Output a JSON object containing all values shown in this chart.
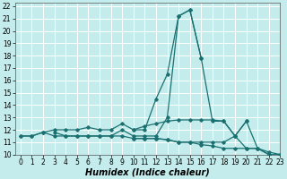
{
  "xlabel": "Humidex (Indice chaleur)",
  "ylabel": "",
  "xlim": [
    -0.5,
    23
  ],
  "ylim": [
    10,
    22.3
  ],
  "bg_color": "#c5ecec",
  "grid_color": "#ffffff",
  "line_color": "#1a7070",
  "lines": [
    {
      "x": [
        0,
        1,
        2,
        3,
        4,
        5,
        6,
        7,
        8,
        9,
        10,
        11,
        12,
        13,
        14,
        15,
        16
      ],
      "y": [
        11.5,
        11.5,
        11.8,
        11.5,
        11.5,
        11.5,
        11.5,
        11.5,
        11.5,
        12.0,
        11.5,
        11.5,
        11.5,
        13.0,
        21.2,
        21.7,
        17.8
      ]
    },
    {
      "x": [
        0,
        1,
        2,
        3,
        4,
        5,
        6,
        7,
        8,
        9,
        10,
        11,
        12,
        13,
        14,
        15,
        16,
        17,
        18,
        19,
        20,
        21,
        22,
        23
      ],
      "y": [
        11.5,
        11.5,
        11.8,
        12.0,
        12.0,
        12.0,
        12.2,
        12.0,
        12.0,
        12.5,
        12.0,
        12.0,
        14.5,
        16.5,
        21.2,
        21.7,
        17.8,
        12.7,
        12.7,
        11.5,
        12.7,
        10.5,
        10.2,
        10.0
      ]
    },
    {
      "x": [
        3,
        4,
        5,
        6,
        7,
        8,
        9,
        10,
        11,
        12,
        13,
        14,
        15,
        16,
        17,
        18,
        19,
        20,
        21,
        22
      ],
      "y": [
        11.8,
        11.5,
        11.5,
        11.5,
        11.5,
        11.5,
        11.5,
        11.3,
        11.3,
        11.3,
        11.2,
        11.0,
        11.0,
        11.0,
        11.0,
        11.0,
        11.5,
        10.5,
        10.5,
        10.0
      ]
    },
    {
      "x": [
        10,
        11,
        12,
        13,
        14,
        15,
        16,
        17,
        18,
        19,
        20
      ],
      "y": [
        12.0,
        12.3,
        12.5,
        12.7,
        12.8,
        12.8,
        12.8,
        12.8,
        12.7,
        11.5,
        12.7
      ]
    },
    {
      "x": [
        10,
        11,
        12,
        13,
        14,
        15,
        16,
        17,
        18,
        19,
        20,
        21,
        22,
        23
      ],
      "y": [
        11.3,
        11.3,
        11.3,
        11.2,
        11.0,
        11.0,
        10.8,
        10.7,
        10.5,
        10.5,
        10.5,
        10.5,
        10.0,
        10.0
      ]
    }
  ],
  "xticks": [
    0,
    1,
    2,
    3,
    4,
    5,
    6,
    7,
    8,
    9,
    10,
    11,
    12,
    13,
    14,
    15,
    16,
    17,
    18,
    19,
    20,
    21,
    22,
    23
  ],
  "yticks": [
    10,
    11,
    12,
    13,
    14,
    15,
    16,
    17,
    18,
    19,
    20,
    21,
    22
  ],
  "tick_fontsize": 5.5,
  "label_fontsize": 7
}
